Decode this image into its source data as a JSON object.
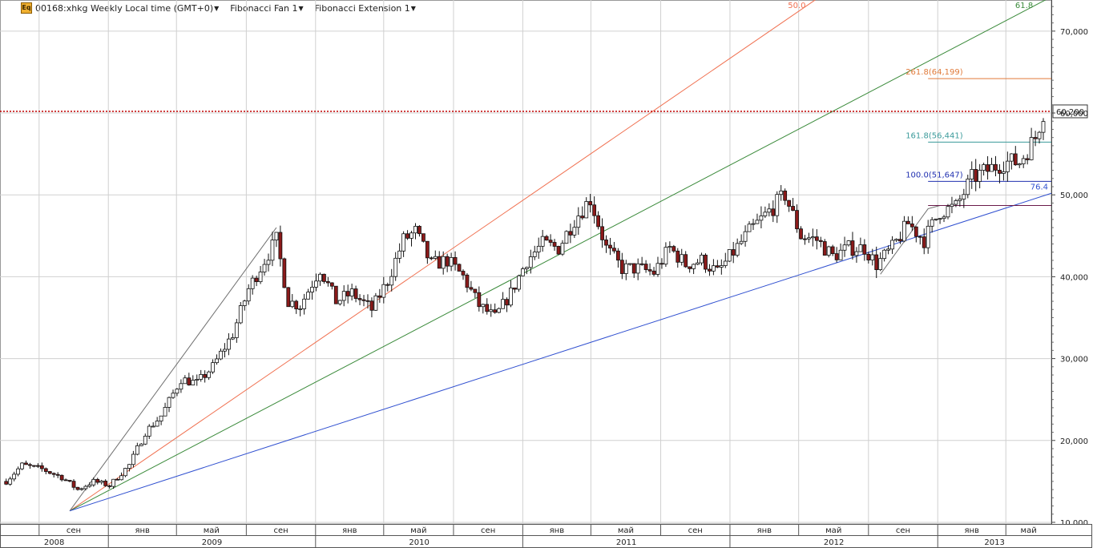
{
  "toolbar": {
    "icon": "Eq",
    "symbol_label": "00168:xhkg Weekly Local time (GMT+0)",
    "fan_label": "Fibonacci Fan 1",
    "extension_label": "Fibonacci Extension 1"
  },
  "colors": {
    "bull": "#ffffff",
    "bear": "#8b1a1a",
    "grid": "#d0d0d0",
    "last_price_line": "#c00000",
    "fan_50": "#f07050",
    "fan_618": "#3a8a3a",
    "fan_764": "#3050d0",
    "trend_line": "#707070",
    "ext_2618": "#e07a3a",
    "ext_1618": "#3a9a9a",
    "ext_100": "#2030b0",
    "ext_base": "#6a1a4a"
  },
  "chart_data": {
    "type": "candlestick",
    "interval": "weekly",
    "y_axis_ticks": [
      "10,000",
      "20,000",
      "30,000",
      "40,000",
      "50,000",
      "60,000",
      "70,000"
    ],
    "ylim": [
      9800,
      73800
    ],
    "last_price": 60200,
    "last_price_label": "60,200",
    "month_labels": [
      {
        "label": "сен",
        "date": "2008-09"
      },
      {
        "label": "янв",
        "date": "2009-01"
      },
      {
        "label": "май",
        "date": "2009-05"
      },
      {
        "label": "сен",
        "date": "2009-09"
      },
      {
        "label": "янв",
        "date": "2010-01"
      },
      {
        "label": "май",
        "date": "2010-05"
      },
      {
        "label": "сен",
        "date": "2010-09"
      },
      {
        "label": "янв",
        "date": "2011-01"
      },
      {
        "label": "май",
        "date": "2011-05"
      },
      {
        "label": "сен",
        "date": "2011-09"
      },
      {
        "label": "янв",
        "date": "2012-01"
      },
      {
        "label": "май",
        "date": "2012-05"
      },
      {
        "label": "сен",
        "date": "2012-09"
      },
      {
        "label": "янв",
        "date": "2013-01"
      },
      {
        "label": "май",
        "date": "2013-05"
      }
    ],
    "year_labels": [
      {
        "label": "2008",
        "date": "2008-07"
      },
      {
        "label": "2009",
        "date": "2009-01"
      },
      {
        "label": "2010",
        "date": "2010-01"
      },
      {
        "label": "2011",
        "date": "2011-01"
      },
      {
        "label": "2012",
        "date": "2012-01"
      },
      {
        "label": "2013",
        "date": "2013-01"
      }
    ],
    "price_path": [
      [
        "2008-07-05",
        15000
      ],
      [
        "2008-08-02",
        17000
      ],
      [
        "2008-09-06",
        16500
      ],
      [
        "2008-10-11",
        15500
      ],
      [
        "2008-11-08",
        14000
      ],
      [
        "2008-12-06",
        15000
      ],
      [
        "2009-01-03",
        14500
      ],
      [
        "2009-02-07",
        17000
      ],
      [
        "2009-03-07",
        21000
      ],
      [
        "2009-04-04",
        23000
      ],
      [
        "2009-05-09",
        27500
      ],
      [
        "2009-06-06",
        27000
      ],
      [
        "2009-07-04",
        29000
      ],
      [
        "2009-08-08",
        33000
      ],
      [
        "2009-09-05",
        38500
      ],
      [
        "2009-10-03",
        42000
      ],
      [
        "2009-10-24",
        44500
      ],
      [
        "2009-11-14",
        37000
      ],
      [
        "2009-12-05",
        36500
      ],
      [
        "2010-01-09",
        41000
      ],
      [
        "2010-02-06",
        37000
      ],
      [
        "2010-03-06",
        38000
      ],
      [
        "2010-04-10",
        36000
      ],
      [
        "2010-05-08",
        39500
      ],
      [
        "2010-06-05",
        44500
      ],
      [
        "2010-06-26",
        45500
      ],
      [
        "2010-07-24",
        41500
      ],
      [
        "2010-08-21",
        42000
      ],
      [
        "2010-09-18",
        40000
      ],
      [
        "2010-10-16",
        36500
      ],
      [
        "2010-11-13",
        35000
      ],
      [
        "2010-12-11",
        38000
      ],
      [
        "2011-01-08",
        42000
      ],
      [
        "2011-02-05",
        44000
      ],
      [
        "2011-03-05",
        43500
      ],
      [
        "2011-04-02",
        47000
      ],
      [
        "2011-04-30",
        49500
      ],
      [
        "2011-05-28",
        43500
      ],
      [
        "2011-06-25",
        41000
      ],
      [
        "2011-07-23",
        41000
      ],
      [
        "2011-08-20",
        40500
      ],
      [
        "2011-09-17",
        43500
      ],
      [
        "2011-10-15",
        41500
      ],
      [
        "2011-11-12",
        42000
      ],
      [
        "2011-12-10",
        40500
      ],
      [
        "2012-01-07",
        43000
      ],
      [
        "2012-02-04",
        45500
      ],
      [
        "2012-03-03",
        47500
      ],
      [
        "2012-04-07",
        50000
      ],
      [
        "2012-05-05",
        45000
      ],
      [
        "2012-06-02",
        44500
      ],
      [
        "2012-06-30",
        42500
      ],
      [
        "2012-07-28",
        43500
      ],
      [
        "2012-08-25",
        43500
      ],
      [
        "2012-09-15",
        41500
      ],
      [
        "2012-10-13",
        43500
      ],
      [
        "2012-11-10",
        46500
      ],
      [
        "2012-12-08",
        44500
      ],
      [
        "2013-01-05",
        48000
      ],
      [
        "2013-02-02",
        48500
      ],
      [
        "2013-03-02",
        52000
      ],
      [
        "2013-03-30",
        53000
      ],
      [
        "2013-04-27",
        54000
      ],
      [
        "2013-05-25",
        54000
      ],
      [
        "2013-06-22",
        57000
      ],
      [
        "2013-07-06",
        60200
      ]
    ],
    "fibonacci_fan": {
      "anchor_start": [
        "2008-10-25",
        11400
      ],
      "anchor_end": [
        "2009-10-24",
        46000
      ],
      "levels": [
        {
          "label": "50.0",
          "ratio": 0.5
        },
        {
          "label": "61.8",
          "ratio": 0.618
        },
        {
          "label": "76.4",
          "ratio": 0.764
        }
      ]
    },
    "fibonacci_extension": {
      "points": [
        [
          "2012-09-22",
          40300
        ],
        [
          "2012-12-15",
          48300
        ],
        [
          "2013-01-05",
          48700
        ]
      ],
      "levels": [
        {
          "label": "261.8(64,199)",
          "value": 64199
        },
        {
          "label": "161.8(56,441)",
          "value": 56441
        },
        {
          "label": "100.0(51,647)",
          "value": 51647
        },
        {
          "label": "",
          "value": 48700
        }
      ]
    }
  }
}
